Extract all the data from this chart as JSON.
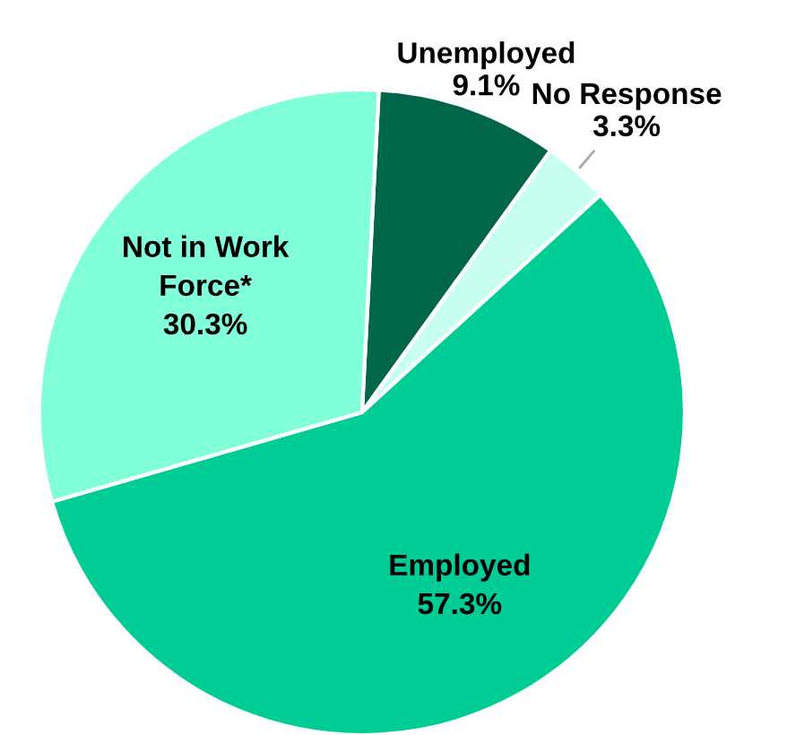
{
  "chart_data": {
    "type": "pie",
    "categories": [
      "Unemployed",
      "No Response",
      "Employed",
      "Not in Work\nForce*"
    ],
    "values": [
      9.1,
      3.3,
      57.3,
      30.3
    ],
    "colors": [
      "#00664a",
      "#c8fff0",
      "#00cc96",
      "#80ffd9"
    ],
    "value_labels": [
      "9.1%",
      "3.3%",
      "57.3%",
      "30.3%"
    ]
  }
}
